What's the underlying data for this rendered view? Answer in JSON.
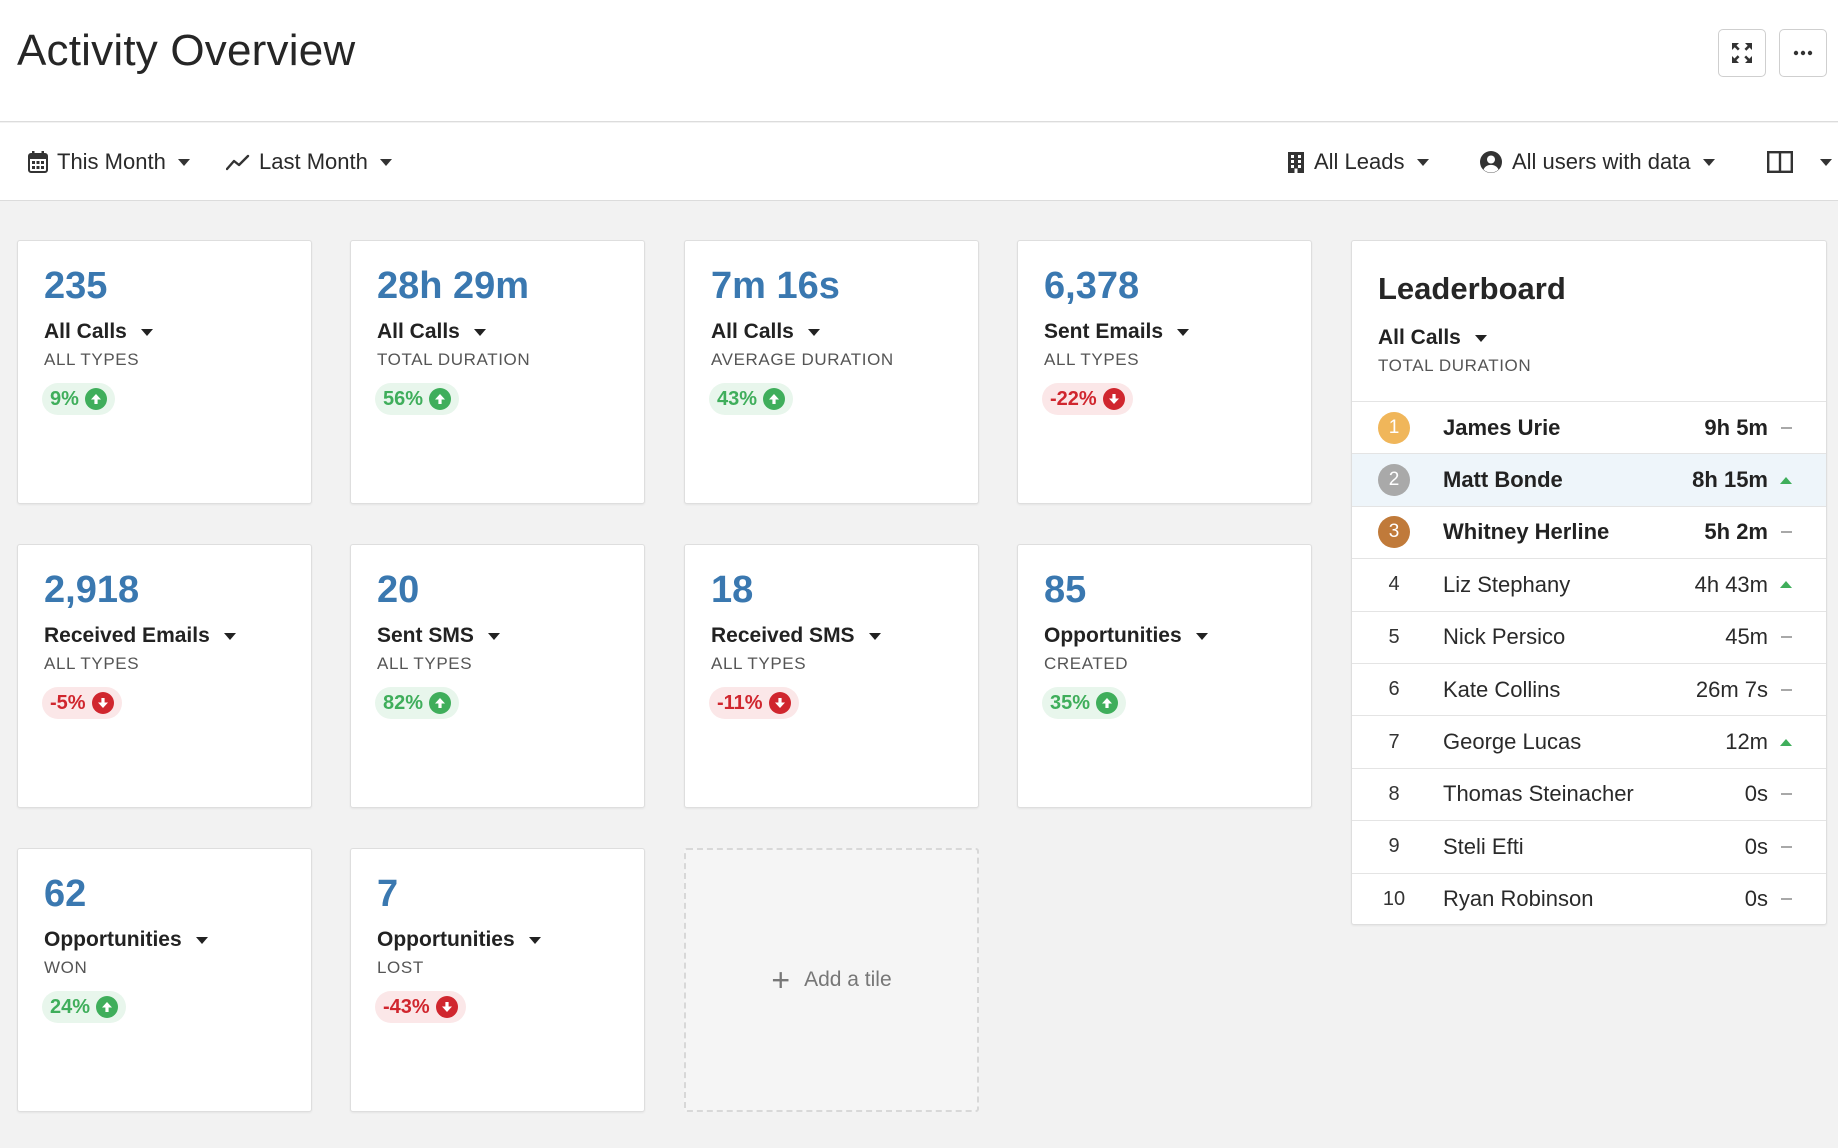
{
  "header": {
    "title": "Activity Overview",
    "fullscreen_icon": "expand-arrows-icon",
    "more_icon": "ellipsis-icon"
  },
  "filters": {
    "period": "This Month",
    "period_icon": "calendar-icon",
    "compare": "Last Month",
    "compare_icon": "trend-line-icon",
    "leads": "All Leads",
    "leads_icon": "building-icon",
    "users": "All users with data",
    "users_icon": "user-circle-icon",
    "layout_icon": "columns-layout-icon"
  },
  "colors": {
    "value_blue": "#3a78b0",
    "up_green": "#3fae5b",
    "down_red": "#d0262e",
    "medal_gold": "#f0b65a",
    "medal_silver": "#a9a9a9",
    "medal_bronze": "#c07a3a"
  },
  "tiles": [
    {
      "value": "235",
      "metric": "All Calls",
      "sub": "ALL TYPES",
      "change": "9%",
      "direction": "up"
    },
    {
      "value": "28h 29m",
      "metric": "All Calls",
      "sub": "TOTAL DURATION",
      "change": "56%",
      "direction": "up"
    },
    {
      "value": "7m 16s",
      "metric": "All Calls",
      "sub": "AVERAGE DURATION",
      "change": "43%",
      "direction": "up"
    },
    {
      "value": "6,378",
      "metric": "Sent Emails",
      "sub": "ALL TYPES",
      "change": "-22%",
      "direction": "down"
    },
    {
      "value": "2,918",
      "metric": "Received Emails",
      "sub": "ALL TYPES",
      "change": "-5%",
      "direction": "down"
    },
    {
      "value": "20",
      "metric": "Sent SMS",
      "sub": "ALL TYPES",
      "change": "82%",
      "direction": "up"
    },
    {
      "value": "18",
      "metric": "Received SMS",
      "sub": "ALL TYPES",
      "change": "-11%",
      "direction": "down"
    },
    {
      "value": "85",
      "metric": "Opportunities",
      "sub": "CREATED",
      "change": "35%",
      "direction": "up"
    },
    {
      "value": "62",
      "metric": "Opportunities",
      "sub": "WON",
      "change": "24%",
      "direction": "up"
    },
    {
      "value": "7",
      "metric": "Opportunities",
      "sub": "LOST",
      "change": "-43%",
      "direction": "down"
    }
  ],
  "add_tile": {
    "label": "Add a tile",
    "icon": "plus-icon"
  },
  "leaderboard": {
    "title": "Leaderboard",
    "metric": "All Calls",
    "sub": "TOTAL DURATION",
    "rows": [
      {
        "rank": "1",
        "name": "James Urie",
        "time": "9h 5m",
        "trend": "flat"
      },
      {
        "rank": "2",
        "name": "Matt Bonde",
        "time": "8h 15m",
        "trend": "up"
      },
      {
        "rank": "3",
        "name": "Whitney Herline",
        "time": "5h 2m",
        "trend": "flat"
      },
      {
        "rank": "4",
        "name": "Liz Stephany",
        "time": "4h 43m",
        "trend": "up"
      },
      {
        "rank": "5",
        "name": "Nick Persico",
        "time": "45m",
        "trend": "flat"
      },
      {
        "rank": "6",
        "name": "Kate Collins",
        "time": "26m 7s",
        "trend": "flat"
      },
      {
        "rank": "7",
        "name": "George Lucas",
        "time": "12m",
        "trend": "up"
      },
      {
        "rank": "8",
        "name": "Thomas Steinacher",
        "time": "0s",
        "trend": "flat"
      },
      {
        "rank": "9",
        "name": "Steli Efti",
        "time": "0s",
        "trend": "flat"
      },
      {
        "rank": "10",
        "name": "Ryan Robinson",
        "time": "0s",
        "trend": "flat"
      }
    ]
  }
}
